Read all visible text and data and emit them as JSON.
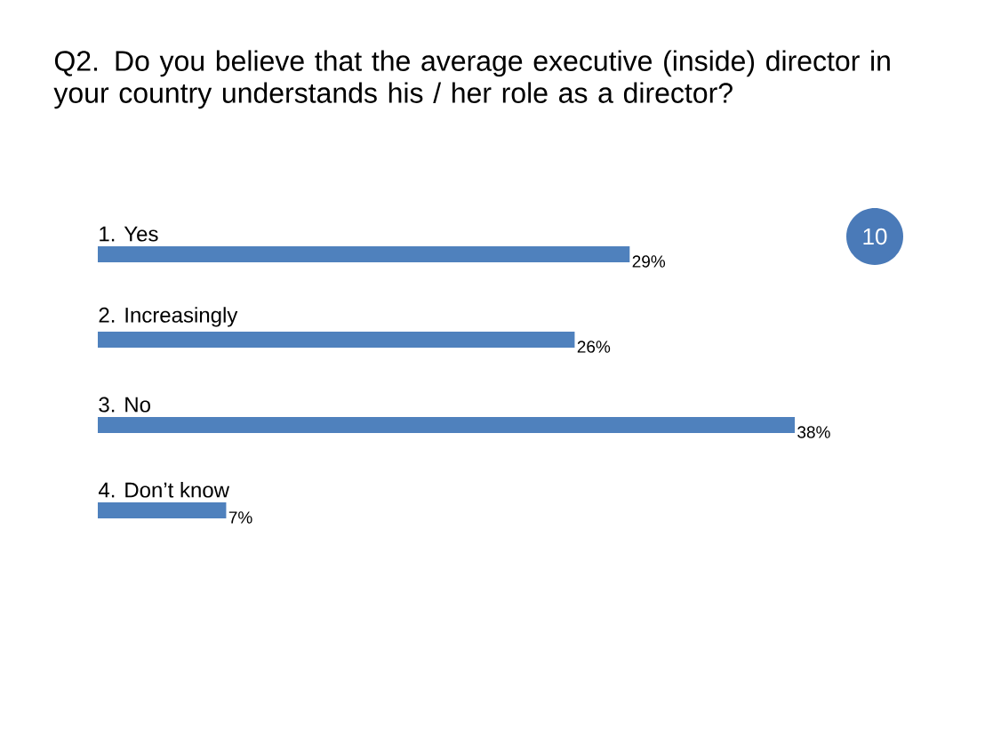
{
  "chart_data": {
    "type": "bar",
    "orientation": "horizontal",
    "title": "Q2. Do you believe that the average executive (inside) director in your country understands his / her role as a director?",
    "categories": [
      "1. Yes",
      "2. Increasingly",
      "3. No",
      "4. Don’t know"
    ],
    "values": [
      29,
      26,
      38,
      7
    ],
    "value_labels": [
      "29%",
      "26%",
      "38%",
      "7%"
    ],
    "color": "#4f81bd",
    "annotations": [
      "10"
    ]
  }
}
